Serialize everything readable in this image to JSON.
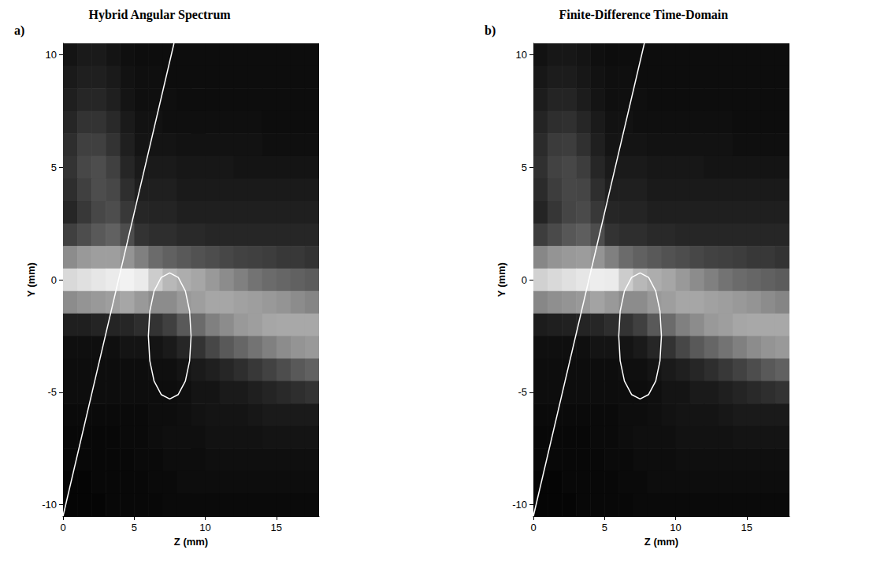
{
  "chart_data": [
    {
      "type": "heatmap",
      "panel": "a)",
      "title": "Hybrid Angular Spectrum",
      "x_label": "Z (mm)",
      "y_label": "Y (mm)",
      "xlim": [
        0,
        18
      ],
      "ylim": [
        -10.5,
        10.5
      ],
      "xticks": [
        0,
        5,
        10,
        15
      ],
      "yticks": [
        -10,
        -5,
        0,
        5,
        10
      ],
      "color": "gray",
      "color_range": [
        0,
        1
      ],
      "x": [
        0.5,
        1.5,
        2.5,
        3.5,
        4.5,
        5.5,
        6.5,
        7.5,
        8.5,
        9.5,
        10.5,
        11.5,
        12.5,
        13.5,
        14.5,
        15.5,
        16.5,
        17.5
      ],
      "y": [
        10,
        9,
        8,
        7,
        6,
        5,
        4,
        3,
        2,
        1,
        0,
        -1,
        -2,
        -3,
        -4,
        -5,
        -6,
        -7,
        -8,
        -9,
        -10
      ],
      "values": [
        [
          0.08,
          0.1,
          0.1,
          0.08,
          0.06,
          0.05,
          0.05,
          0.05,
          0.05,
          0.05,
          0.05,
          0.05,
          0.05,
          0.05,
          0.05,
          0.05,
          0.05,
          0.05
        ],
        [
          0.1,
          0.12,
          0.12,
          0.1,
          0.07,
          0.06,
          0.06,
          0.05,
          0.05,
          0.05,
          0.05,
          0.05,
          0.05,
          0.05,
          0.05,
          0.05,
          0.05,
          0.05
        ],
        [
          0.12,
          0.15,
          0.15,
          0.12,
          0.08,
          0.06,
          0.06,
          0.06,
          0.05,
          0.05,
          0.05,
          0.05,
          0.05,
          0.05,
          0.05,
          0.05,
          0.05,
          0.05
        ],
        [
          0.15,
          0.2,
          0.2,
          0.16,
          0.1,
          0.07,
          0.07,
          0.06,
          0.06,
          0.06,
          0.06,
          0.06,
          0.06,
          0.06,
          0.05,
          0.05,
          0.05,
          0.05
        ],
        [
          0.18,
          0.25,
          0.25,
          0.2,
          0.12,
          0.08,
          0.08,
          0.08,
          0.07,
          0.07,
          0.07,
          0.07,
          0.07,
          0.07,
          0.06,
          0.06,
          0.06,
          0.06
        ],
        [
          0.2,
          0.28,
          0.3,
          0.25,
          0.15,
          0.1,
          0.1,
          0.1,
          0.09,
          0.09,
          0.09,
          0.09,
          0.08,
          0.08,
          0.08,
          0.08,
          0.08,
          0.08
        ],
        [
          0.18,
          0.25,
          0.3,
          0.28,
          0.18,
          0.12,
          0.12,
          0.12,
          0.1,
          0.1,
          0.1,
          0.1,
          0.1,
          0.1,
          0.1,
          0.1,
          0.1,
          0.1
        ],
        [
          0.15,
          0.22,
          0.28,
          0.3,
          0.22,
          0.15,
          0.14,
          0.14,
          0.12,
          0.12,
          0.12,
          0.12,
          0.12,
          0.12,
          0.12,
          0.12,
          0.12,
          0.12
        ],
        [
          0.25,
          0.3,
          0.35,
          0.38,
          0.3,
          0.2,
          0.18,
          0.18,
          0.16,
          0.16,
          0.15,
          0.15,
          0.15,
          0.15,
          0.15,
          0.15,
          0.15,
          0.15
        ],
        [
          0.55,
          0.6,
          0.62,
          0.62,
          0.58,
          0.5,
          0.42,
          0.38,
          0.35,
          0.32,
          0.3,
          0.28,
          0.26,
          0.25,
          0.24,
          0.22,
          0.22,
          0.2
        ],
        [
          0.85,
          0.88,
          0.9,
          0.92,
          0.95,
          0.92,
          0.8,
          0.72,
          0.68,
          0.65,
          0.6,
          0.55,
          0.5,
          0.45,
          0.42,
          0.4,
          0.38,
          0.36
        ],
        [
          0.55,
          0.58,
          0.6,
          0.62,
          0.65,
          0.6,
          0.55,
          0.55,
          0.6,
          0.62,
          0.65,
          0.65,
          0.63,
          0.62,
          0.6,
          0.58,
          0.55,
          0.52
        ],
        [
          0.12,
          0.12,
          0.14,
          0.14,
          0.15,
          0.18,
          0.2,
          0.25,
          0.35,
          0.42,
          0.5,
          0.55,
          0.6,
          0.62,
          0.65,
          0.66,
          0.66,
          0.66
        ],
        [
          0.06,
          0.06,
          0.06,
          0.06,
          0.08,
          0.08,
          0.08,
          0.1,
          0.15,
          0.2,
          0.28,
          0.35,
          0.4,
          0.45,
          0.5,
          0.55,
          0.58,
          0.6
        ],
        [
          0.05,
          0.05,
          0.05,
          0.05,
          0.05,
          0.05,
          0.06,
          0.06,
          0.08,
          0.1,
          0.12,
          0.15,
          0.18,
          0.22,
          0.26,
          0.3,
          0.35,
          0.38
        ],
        [
          0.05,
          0.05,
          0.05,
          0.05,
          0.05,
          0.05,
          0.05,
          0.05,
          0.06,
          0.08,
          0.08,
          0.1,
          0.1,
          0.12,
          0.14,
          0.16,
          0.18,
          0.2
        ],
        [
          0.04,
          0.04,
          0.04,
          0.04,
          0.04,
          0.04,
          0.05,
          0.05,
          0.06,
          0.07,
          0.08,
          0.08,
          0.08,
          0.09,
          0.1,
          0.1,
          0.1,
          0.1
        ],
        [
          0.03,
          0.03,
          0.03,
          0.03,
          0.04,
          0.04,
          0.05,
          0.06,
          0.06,
          0.06,
          0.07,
          0.07,
          0.07,
          0.07,
          0.08,
          0.08,
          0.08,
          0.08
        ],
        [
          0.03,
          0.03,
          0.03,
          0.03,
          0.03,
          0.04,
          0.04,
          0.05,
          0.05,
          0.05,
          0.06,
          0.06,
          0.06,
          0.06,
          0.06,
          0.06,
          0.06,
          0.06
        ],
        [
          0.02,
          0.02,
          0.03,
          0.03,
          0.03,
          0.03,
          0.04,
          0.04,
          0.05,
          0.05,
          0.05,
          0.05,
          0.05,
          0.05,
          0.05,
          0.05,
          0.05,
          0.05
        ],
        [
          0.02,
          0.02,
          0.02,
          0.03,
          0.03,
          0.03,
          0.03,
          0.04,
          0.04,
          0.04,
          0.04,
          0.04,
          0.04,
          0.04,
          0.04,
          0.04,
          0.04,
          0.04
        ]
      ],
      "outlines": [
        {
          "shape": "line",
          "color": "#ffffff",
          "points": [
            [
              0,
              -10.5
            ],
            [
              7.8,
              10.5
            ]
          ]
        },
        {
          "shape": "polygon",
          "color": "#ffffff",
          "points": [
            [
              9.0,
              -2.5
            ],
            [
              8.9,
              -1.4
            ],
            [
              8.6,
              -0.5
            ],
            [
              8.1,
              0.1
            ],
            [
              7.5,
              0.3
            ],
            [
              6.9,
              0.1
            ],
            [
              6.4,
              -0.5
            ],
            [
              6.1,
              -1.4
            ],
            [
              6.0,
              -2.5
            ],
            [
              6.1,
              -3.6
            ],
            [
              6.4,
              -4.5
            ],
            [
              6.9,
              -5.1
            ],
            [
              7.5,
              -5.3
            ],
            [
              8.1,
              -5.1
            ],
            [
              8.6,
              -4.5
            ],
            [
              8.9,
              -3.6
            ]
          ]
        }
      ]
    },
    {
      "type": "heatmap",
      "panel": "b)",
      "title": "Finite-Difference Time-Domain",
      "x_label": "Z (mm)",
      "y_label": "Y (mm)",
      "xlim": [
        0,
        18
      ],
      "ylim": [
        -10.5,
        10.5
      ],
      "xticks": [
        0,
        5,
        10,
        15
      ],
      "yticks": [
        -10,
        -5,
        0,
        5,
        10
      ],
      "color": "gray",
      "color_range": [
        0,
        1
      ],
      "x": [
        0.5,
        1.5,
        2.5,
        3.5,
        4.5,
        5.5,
        6.5,
        7.5,
        8.5,
        9.5,
        10.5,
        11.5,
        12.5,
        13.5,
        14.5,
        15.5,
        16.5,
        17.5
      ],
      "y": [
        10,
        9,
        8,
        7,
        6,
        5,
        4,
        3,
        2,
        1,
        0,
        -1,
        -2,
        -3,
        -4,
        -5,
        -6,
        -7,
        -8,
        -9,
        -10
      ],
      "values": [
        [
          0.07,
          0.09,
          0.09,
          0.08,
          0.06,
          0.05,
          0.05,
          0.05,
          0.05,
          0.05,
          0.05,
          0.05,
          0.05,
          0.05,
          0.05,
          0.05,
          0.05,
          0.05
        ],
        [
          0.09,
          0.11,
          0.11,
          0.09,
          0.07,
          0.06,
          0.06,
          0.05,
          0.05,
          0.05,
          0.05,
          0.05,
          0.05,
          0.05,
          0.05,
          0.05,
          0.05,
          0.05
        ],
        [
          0.11,
          0.14,
          0.14,
          0.11,
          0.08,
          0.06,
          0.06,
          0.06,
          0.05,
          0.05,
          0.05,
          0.05,
          0.05,
          0.05,
          0.05,
          0.05,
          0.05,
          0.05
        ],
        [
          0.14,
          0.18,
          0.19,
          0.15,
          0.1,
          0.07,
          0.07,
          0.06,
          0.06,
          0.06,
          0.06,
          0.06,
          0.06,
          0.06,
          0.05,
          0.05,
          0.05,
          0.05
        ],
        [
          0.17,
          0.23,
          0.24,
          0.19,
          0.12,
          0.08,
          0.08,
          0.08,
          0.07,
          0.07,
          0.07,
          0.07,
          0.07,
          0.07,
          0.06,
          0.06,
          0.06,
          0.06
        ],
        [
          0.19,
          0.26,
          0.28,
          0.24,
          0.15,
          0.1,
          0.1,
          0.1,
          0.09,
          0.09,
          0.09,
          0.09,
          0.08,
          0.08,
          0.08,
          0.08,
          0.08,
          0.08
        ],
        [
          0.17,
          0.24,
          0.28,
          0.27,
          0.18,
          0.12,
          0.12,
          0.12,
          0.1,
          0.1,
          0.1,
          0.1,
          0.1,
          0.1,
          0.1,
          0.1,
          0.1,
          0.1
        ],
        [
          0.14,
          0.21,
          0.27,
          0.29,
          0.22,
          0.15,
          0.14,
          0.14,
          0.12,
          0.12,
          0.12,
          0.12,
          0.12,
          0.12,
          0.12,
          0.12,
          0.12,
          0.12
        ],
        [
          0.24,
          0.29,
          0.34,
          0.37,
          0.3,
          0.2,
          0.18,
          0.18,
          0.16,
          0.16,
          0.15,
          0.15,
          0.15,
          0.15,
          0.15,
          0.15,
          0.15,
          0.15
        ],
        [
          0.53,
          0.58,
          0.6,
          0.61,
          0.58,
          0.5,
          0.42,
          0.38,
          0.35,
          0.32,
          0.3,
          0.28,
          0.26,
          0.25,
          0.24,
          0.22,
          0.22,
          0.2
        ],
        [
          0.82,
          0.85,
          0.88,
          0.9,
          0.93,
          0.92,
          0.8,
          0.72,
          0.68,
          0.65,
          0.6,
          0.55,
          0.5,
          0.45,
          0.42,
          0.4,
          0.38,
          0.36
        ],
        [
          0.53,
          0.56,
          0.58,
          0.6,
          0.64,
          0.6,
          0.55,
          0.55,
          0.6,
          0.62,
          0.65,
          0.65,
          0.63,
          0.62,
          0.6,
          0.58,
          0.55,
          0.52
        ],
        [
          0.11,
          0.12,
          0.13,
          0.14,
          0.15,
          0.18,
          0.2,
          0.25,
          0.35,
          0.42,
          0.5,
          0.55,
          0.6,
          0.62,
          0.65,
          0.66,
          0.66,
          0.66
        ],
        [
          0.06,
          0.06,
          0.06,
          0.06,
          0.08,
          0.08,
          0.08,
          0.1,
          0.15,
          0.2,
          0.28,
          0.35,
          0.4,
          0.45,
          0.5,
          0.55,
          0.58,
          0.6
        ],
        [
          0.05,
          0.05,
          0.05,
          0.05,
          0.05,
          0.05,
          0.06,
          0.06,
          0.08,
          0.1,
          0.12,
          0.15,
          0.18,
          0.22,
          0.26,
          0.3,
          0.35,
          0.38
        ],
        [
          0.05,
          0.05,
          0.05,
          0.05,
          0.05,
          0.05,
          0.05,
          0.05,
          0.06,
          0.08,
          0.08,
          0.1,
          0.1,
          0.12,
          0.14,
          0.16,
          0.18,
          0.2
        ],
        [
          0.04,
          0.04,
          0.04,
          0.04,
          0.04,
          0.04,
          0.05,
          0.05,
          0.06,
          0.07,
          0.08,
          0.08,
          0.08,
          0.09,
          0.1,
          0.1,
          0.1,
          0.1
        ],
        [
          0.03,
          0.03,
          0.03,
          0.03,
          0.04,
          0.04,
          0.05,
          0.06,
          0.06,
          0.06,
          0.07,
          0.07,
          0.07,
          0.07,
          0.08,
          0.08,
          0.08,
          0.08
        ],
        [
          0.03,
          0.03,
          0.03,
          0.03,
          0.03,
          0.04,
          0.04,
          0.05,
          0.05,
          0.05,
          0.06,
          0.06,
          0.06,
          0.06,
          0.06,
          0.06,
          0.06,
          0.06
        ],
        [
          0.02,
          0.02,
          0.03,
          0.03,
          0.03,
          0.03,
          0.04,
          0.04,
          0.05,
          0.05,
          0.05,
          0.05,
          0.05,
          0.05,
          0.05,
          0.05,
          0.05,
          0.05
        ],
        [
          0.02,
          0.02,
          0.02,
          0.03,
          0.03,
          0.03,
          0.03,
          0.04,
          0.04,
          0.04,
          0.04,
          0.04,
          0.04,
          0.04,
          0.04,
          0.04,
          0.04,
          0.04
        ]
      ],
      "outlines": [
        {
          "shape": "line",
          "color": "#ffffff",
          "points": [
            [
              0,
              -10.5
            ],
            [
              7.8,
              10.5
            ]
          ]
        },
        {
          "shape": "polygon",
          "color": "#ffffff",
          "points": [
            [
              9.0,
              -2.5
            ],
            [
              8.9,
              -1.4
            ],
            [
              8.6,
              -0.5
            ],
            [
              8.1,
              0.1
            ],
            [
              7.5,
              0.3
            ],
            [
              6.9,
              0.1
            ],
            [
              6.4,
              -0.5
            ],
            [
              6.1,
              -1.4
            ],
            [
              6.0,
              -2.5
            ],
            [
              6.1,
              -3.6
            ],
            [
              6.4,
              -4.5
            ],
            [
              6.9,
              -5.1
            ],
            [
              7.5,
              -5.3
            ],
            [
              8.1,
              -5.1
            ],
            [
              8.6,
              -4.5
            ],
            [
              8.9,
              -3.6
            ]
          ]
        }
      ]
    }
  ]
}
